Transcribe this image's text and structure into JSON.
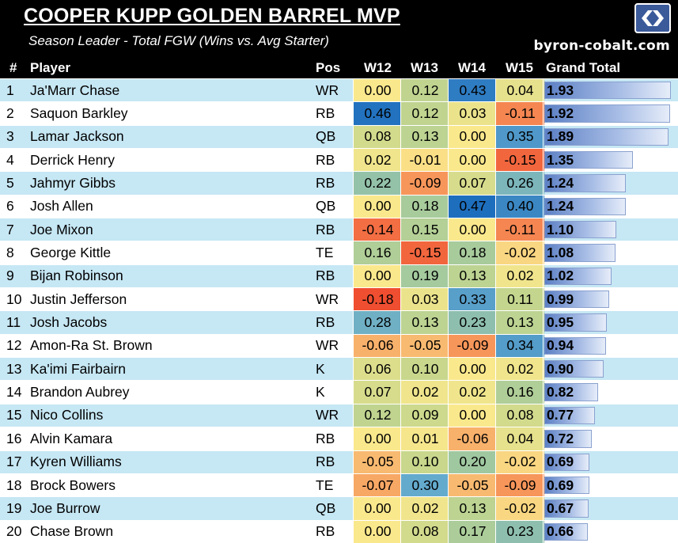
{
  "header": {
    "title": "COOPER KUPP GOLDEN BARREL MVP",
    "subtitle": "Season Leader - Total FGW (Wins vs. Avg Starter)",
    "site": "byron-cobalt.com"
  },
  "columns": {
    "rank": "#",
    "player": "Player",
    "pos": "Pos",
    "w12": "W12",
    "w13": "W13",
    "w14": "W14",
    "w15": "W15",
    "total": "Grand Total"
  },
  "rows": [
    {
      "rank": "1",
      "player": "Ja'Marr Chase",
      "pos": "WR",
      "w12": "0.00",
      "w13": "0.12",
      "w14": "0.43",
      "w15": "0.04",
      "total": "1.93"
    },
    {
      "rank": "2",
      "player": "Saquon Barkley",
      "pos": "RB",
      "w12": "0.46",
      "w13": "0.12",
      "w14": "0.03",
      "w15": "-0.11",
      "total": "1.92"
    },
    {
      "rank": "3",
      "player": "Lamar Jackson",
      "pos": "QB",
      "w12": "0.08",
      "w13": "0.13",
      "w14": "0.00",
      "w15": "0.35",
      "total": "1.89"
    },
    {
      "rank": "4",
      "player": "Derrick Henry",
      "pos": "RB",
      "w12": "0.02",
      "w13": "-0.01",
      "w14": "0.00",
      "w15": "-0.15",
      "total": "1.35"
    },
    {
      "rank": "5",
      "player": "Jahmyr Gibbs",
      "pos": "RB",
      "w12": "0.22",
      "w13": "-0.09",
      "w14": "0.07",
      "w15": "0.26",
      "total": "1.24"
    },
    {
      "rank": "6",
      "player": "Josh Allen",
      "pos": "QB",
      "w12": "0.00",
      "w13": "0.18",
      "w14": "0.47",
      "w15": "0.40",
      "total": "1.24"
    },
    {
      "rank": "7",
      "player": "Joe Mixon",
      "pos": "RB",
      "w12": "-0.14",
      "w13": "0.15",
      "w14": "0.00",
      "w15": "-0.11",
      "total": "1.10"
    },
    {
      "rank": "8",
      "player": "George Kittle",
      "pos": "TE",
      "w12": "0.16",
      "w13": "-0.15",
      "w14": "0.18",
      "w15": "-0.02",
      "total": "1.08"
    },
    {
      "rank": "9",
      "player": "Bijan Robinson",
      "pos": "RB",
      "w12": "0.00",
      "w13": "0.19",
      "w14": "0.13",
      "w15": "0.02",
      "total": "1.02"
    },
    {
      "rank": "10",
      "player": "Justin Jefferson",
      "pos": "WR",
      "w12": "-0.18",
      "w13": "0.03",
      "w14": "0.33",
      "w15": "0.11",
      "total": "0.99"
    },
    {
      "rank": "11",
      "player": "Josh Jacobs",
      "pos": "RB",
      "w12": "0.28",
      "w13": "0.13",
      "w14": "0.23",
      "w15": "0.13",
      "total": "0.95"
    },
    {
      "rank": "12",
      "player": "Amon-Ra St. Brown",
      "pos": "WR",
      "w12": "-0.06",
      "w13": "-0.05",
      "w14": "-0.09",
      "w15": "0.34",
      "total": "0.94"
    },
    {
      "rank": "13",
      "player": "Ka'imi Fairbairn",
      "pos": "K",
      "w12": "0.06",
      "w13": "0.10",
      "w14": "0.00",
      "w15": "0.02",
      "total": "0.90"
    },
    {
      "rank": "14",
      "player": "Brandon Aubrey",
      "pos": "K",
      "w12": "0.07",
      "w13": "0.02",
      "w14": "0.02",
      "w15": "0.16",
      "total": "0.82"
    },
    {
      "rank": "15",
      "player": "Nico Collins",
      "pos": "WR",
      "w12": "0.12",
      "w13": "0.09",
      "w14": "0.00",
      "w15": "0.08",
      "total": "0.77"
    },
    {
      "rank": "16",
      "player": "Alvin Kamara",
      "pos": "RB",
      "w12": "0.00",
      "w13": "0.01",
      "w14": "-0.06",
      "w15": "0.04",
      "total": "0.72"
    },
    {
      "rank": "17",
      "player": "Kyren Williams",
      "pos": "RB",
      "w12": "-0.05",
      "w13": "0.10",
      "w14": "0.20",
      "w15": "-0.02",
      "total": "0.69"
    },
    {
      "rank": "18",
      "player": "Brock Bowers",
      "pos": "TE",
      "w12": "-0.07",
      "w13": "0.30",
      "w14": "-0.05",
      "w15": "-0.09",
      "total": "0.69"
    },
    {
      "rank": "19",
      "player": "Joe Burrow",
      "pos": "QB",
      "w12": "0.00",
      "w13": "0.02",
      "w14": "0.13",
      "w15": "-0.02",
      "total": "0.67"
    },
    {
      "rank": "20",
      "player": "Chase Brown",
      "pos": "RB",
      "w12": "0.00",
      "w13": "0.08",
      "w14": "0.17",
      "w15": "0.23",
      "total": "0.66"
    }
  ]
}
